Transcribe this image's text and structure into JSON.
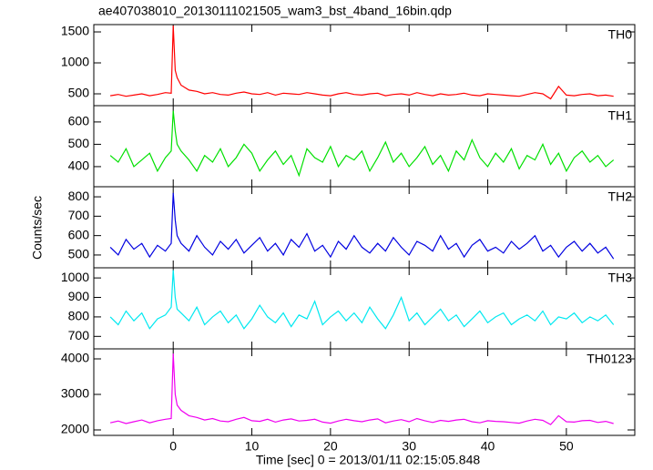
{
  "title": "ae407038010_20130111021505_wam3_bst_4band_16bin.qdp",
  "xlabel": "Time [sec] 0 = 2013/01/11 02:15:05.848",
  "ylabel": "Counts/sec",
  "chart_data": [
    {
      "type": "line",
      "name": "TH0",
      "color": "#ff0000",
      "x": [
        -8,
        -7,
        -6,
        -5,
        -4,
        -3,
        -2,
        -1,
        -0.25,
        0,
        0.25,
        0.5,
        1,
        2,
        3,
        4,
        5,
        6,
        7,
        8,
        9,
        10,
        11,
        12,
        13,
        14,
        15,
        16,
        17,
        18,
        19,
        20,
        21,
        22,
        23,
        24,
        25,
        26,
        27,
        28,
        29,
        30,
        31,
        32,
        33,
        34,
        35,
        36,
        37,
        38,
        39,
        40,
        41,
        42,
        43,
        44,
        45,
        46,
        47,
        48,
        49,
        50,
        51,
        52,
        53,
        54,
        55,
        56
      ],
      "values": [
        470,
        490,
        460,
        480,
        500,
        470,
        490,
        520,
        510,
        1600,
        880,
        760,
        640,
        560,
        540,
        500,
        520,
        490,
        480,
        510,
        530,
        500,
        490,
        520,
        480,
        510,
        500,
        490,
        520,
        500,
        480,
        470,
        500,
        520,
        490,
        480,
        500,
        510,
        470,
        490,
        500,
        480,
        520,
        490,
        470,
        500,
        480,
        490,
        510,
        480,
        470,
        500,
        490,
        480,
        470,
        460,
        490,
        520,
        500,
        420,
        620,
        480,
        470,
        490,
        500,
        470,
        480,
        460
      ],
      "xlim": [
        -10.1,
        58.7
      ],
      "xticks": [
        0,
        10,
        20,
        30,
        40,
        50
      ],
      "ylim": [
        309,
        1618
      ],
      "yticks": [
        500,
        1000,
        1500
      ]
    },
    {
      "type": "line",
      "name": "TH1",
      "color": "#00e000",
      "x": [
        -8,
        -7,
        -6,
        -5,
        -4,
        -3,
        -2,
        -1,
        -0.25,
        0,
        0.25,
        0.5,
        1,
        2,
        3,
        4,
        5,
        6,
        7,
        8,
        9,
        10,
        11,
        12,
        13,
        14,
        15,
        16,
        17,
        18,
        19,
        20,
        21,
        22,
        23,
        24,
        25,
        26,
        27,
        28,
        29,
        30,
        31,
        32,
        33,
        34,
        35,
        36,
        37,
        38,
        39,
        40,
        41,
        42,
        43,
        44,
        45,
        46,
        47,
        48,
        49,
        50,
        51,
        52,
        53,
        54,
        55,
        56
      ],
      "values": [
        450,
        420,
        480,
        400,
        430,
        460,
        380,
        440,
        470,
        650,
        560,
        500,
        470,
        430,
        380,
        450,
        420,
        480,
        400,
        440,
        500,
        460,
        380,
        430,
        470,
        410,
        450,
        360,
        480,
        440,
        420,
        490,
        400,
        450,
        430,
        470,
        380,
        440,
        510,
        420,
        460,
        400,
        440,
        490,
        410,
        450,
        380,
        470,
        430,
        520,
        440,
        400,
        460,
        420,
        480,
        390,
        450,
        430,
        500,
        410,
        460,
        380,
        440,
        470,
        420,
        450,
        400,
        430
      ],
      "xlim": [
        -10.1,
        58.7
      ],
      "xticks": [
        0,
        10,
        20,
        30,
        40,
        50
      ],
      "ylim": [
        310,
        673
      ],
      "yticks": [
        400,
        500,
        600
      ]
    },
    {
      "type": "line",
      "name": "TH2",
      "color": "#0000e0",
      "x": [
        -8,
        -7,
        -6,
        -5,
        -4,
        -3,
        -2,
        -1,
        -0.25,
        0,
        0.25,
        0.5,
        1,
        2,
        3,
        4,
        5,
        6,
        7,
        8,
        9,
        10,
        11,
        12,
        13,
        14,
        15,
        16,
        17,
        18,
        19,
        20,
        21,
        22,
        23,
        24,
        25,
        26,
        27,
        28,
        29,
        30,
        31,
        32,
        33,
        34,
        35,
        36,
        37,
        38,
        39,
        40,
        41,
        42,
        43,
        44,
        45,
        46,
        47,
        48,
        49,
        50,
        51,
        52,
        53,
        54,
        55,
        56
      ],
      "values": [
        540,
        500,
        580,
        530,
        560,
        490,
        550,
        520,
        560,
        820,
        680,
        600,
        560,
        520,
        600,
        540,
        500,
        570,
        530,
        580,
        510,
        550,
        590,
        520,
        560,
        500,
        580,
        540,
        610,
        520,
        550,
        490,
        570,
        530,
        600,
        540,
        510,
        560,
        520,
        590,
        540,
        500,
        570,
        550,
        520,
        600,
        530,
        560,
        490,
        550,
        580,
        520,
        540,
        510,
        570,
        530,
        560,
        600,
        520,
        550,
        490,
        540,
        570,
        520,
        560,
        510,
        540,
        480
      ],
      "xlim": [
        -10.1,
        58.7
      ],
      "xticks": [
        0,
        10,
        20,
        30,
        40,
        50
      ],
      "ylim": [
        434,
        852
      ],
      "yticks": [
        500,
        600,
        700,
        800
      ]
    },
    {
      "type": "line",
      "name": "TH3",
      "color": "#00e8f0",
      "x": [
        -8,
        -7,
        -6,
        -5,
        -4,
        -3,
        -2,
        -1,
        -0.25,
        0,
        0.25,
        0.5,
        1,
        2,
        3,
        4,
        5,
        6,
        7,
        8,
        9,
        10,
        11,
        12,
        13,
        14,
        15,
        16,
        17,
        18,
        19,
        20,
        21,
        22,
        23,
        24,
        25,
        26,
        27,
        28,
        29,
        30,
        31,
        32,
        33,
        34,
        35,
        36,
        37,
        38,
        39,
        40,
        41,
        42,
        43,
        44,
        45,
        46,
        47,
        48,
        49,
        50,
        51,
        52,
        53,
        54,
        55,
        56
      ],
      "values": [
        800,
        760,
        830,
        780,
        820,
        740,
        790,
        810,
        850,
        1040,
        900,
        840,
        820,
        780,
        850,
        760,
        800,
        830,
        770,
        810,
        740,
        790,
        860,
        800,
        770,
        820,
        750,
        810,
        790,
        880,
        760,
        800,
        830,
        780,
        820,
        770,
        850,
        790,
        740,
        810,
        900,
        780,
        820,
        760,
        800,
        840,
        780,
        810,
        750,
        790,
        830,
        770,
        800,
        820,
        760,
        790,
        810,
        780,
        830,
        760,
        800,
        790,
        820,
        770,
        800,
        780,
        810,
        760
      ],
      "xlim": [
        -10.1,
        58.7
      ],
      "xticks": [
        0,
        10,
        20,
        30,
        40,
        50
      ],
      "ylim": [
        636,
        1052
      ],
      "yticks": [
        700,
        800,
        900,
        1000
      ]
    },
    {
      "type": "line",
      "name": "TH0123",
      "color": "#f000f0",
      "x": [
        -8,
        -7,
        -6,
        -5,
        -4,
        -3,
        -2,
        -1,
        -0.25,
        0,
        0.25,
        0.5,
        1,
        2,
        3,
        4,
        5,
        6,
        7,
        8,
        9,
        10,
        11,
        12,
        13,
        14,
        15,
        16,
        17,
        18,
        19,
        20,
        21,
        22,
        23,
        24,
        25,
        26,
        27,
        28,
        29,
        30,
        31,
        32,
        33,
        34,
        35,
        36,
        37,
        38,
        39,
        40,
        41,
        42,
        43,
        44,
        45,
        46,
        47,
        48,
        49,
        50,
        51,
        52,
        53,
        54,
        55,
        56
      ],
      "values": [
        2200,
        2250,
        2180,
        2230,
        2280,
        2200,
        2260,
        2300,
        2320,
        4150,
        3000,
        2700,
        2550,
        2400,
        2350,
        2280,
        2320,
        2250,
        2230,
        2300,
        2350,
        2260,
        2240,
        2300,
        2220,
        2280,
        2310,
        2250,
        2270,
        2300,
        2220,
        2190,
        2250,
        2300,
        2260,
        2230,
        2280,
        2310,
        2200,
        2250,
        2290,
        2230,
        2320,
        2260,
        2210,
        2270,
        2240,
        2280,
        2300,
        2230,
        2200,
        2260,
        2240,
        2230,
        2210,
        2190,
        2250,
        2300,
        2270,
        2150,
        2400,
        2230,
        2220,
        2260,
        2270,
        2210,
        2240,
        2180
      ],
      "xlim": [
        -10.1,
        58.7
      ],
      "xticks": [
        0,
        10,
        20,
        30,
        40,
        50
      ],
      "ylim": [
        1846,
        4282
      ],
      "yticks": [
        2000,
        3000,
        4000
      ]
    }
  ]
}
